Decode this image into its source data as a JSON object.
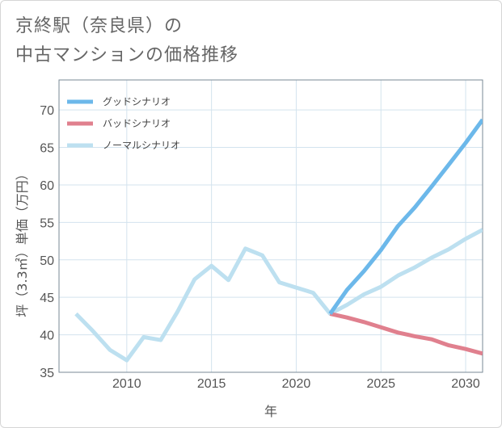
{
  "title": {
    "line1": "京終駅（奈良県）の",
    "line2": "中古マンションの価格推移"
  },
  "chart_data": {
    "type": "line",
    "xlabel": "年",
    "ylabel": "坪（3.3㎡）単価（万円）",
    "xlim": [
      2006,
      2031
    ],
    "ylim": [
      35,
      74
    ],
    "xticks": [
      2010,
      2015,
      2020,
      2025,
      2030
    ],
    "yticks": [
      35,
      40,
      45,
      50,
      55,
      60,
      65,
      70
    ],
    "grid": true,
    "legend_position": "top-left",
    "series": [
      {
        "name": "グッドシナリオ",
        "color": "#6cb8ea",
        "x": [
          2022,
          2023,
          2024,
          2025,
          2026,
          2027,
          2028,
          2029,
          2030,
          2031
        ],
        "y": [
          42.8,
          46.0,
          48.5,
          51.3,
          54.5,
          57.0,
          59.8,
          62.7,
          65.6,
          68.7
        ]
      },
      {
        "name": "バッドシナリオ",
        "color": "#e0808e",
        "x": [
          2022,
          2023,
          2024,
          2025,
          2026,
          2027,
          2028,
          2029,
          2030,
          2031
        ],
        "y": [
          42.8,
          42.3,
          41.7,
          41.0,
          40.3,
          39.8,
          39.4,
          38.6,
          38.1,
          37.5
        ]
      },
      {
        "name": "ノーマルシナリオ",
        "color": "#bde0f0",
        "x": [
          2007,
          2008,
          2009,
          2010,
          2011,
          2012,
          2013,
          2014,
          2015,
          2016,
          2017,
          2018,
          2019,
          2020,
          2021,
          2022,
          2023,
          2024,
          2025,
          2026,
          2027,
          2028,
          2029,
          2030,
          2031
        ],
        "y": [
          42.8,
          40.5,
          38.0,
          36.6,
          39.7,
          39.3,
          43.1,
          47.4,
          49.2,
          47.3,
          51.5,
          50.6,
          47.0,
          46.3,
          45.6,
          42.8,
          44.0,
          45.4,
          46.4,
          47.9,
          49.0,
          50.3,
          51.4,
          52.8,
          54.0
        ]
      }
    ]
  }
}
